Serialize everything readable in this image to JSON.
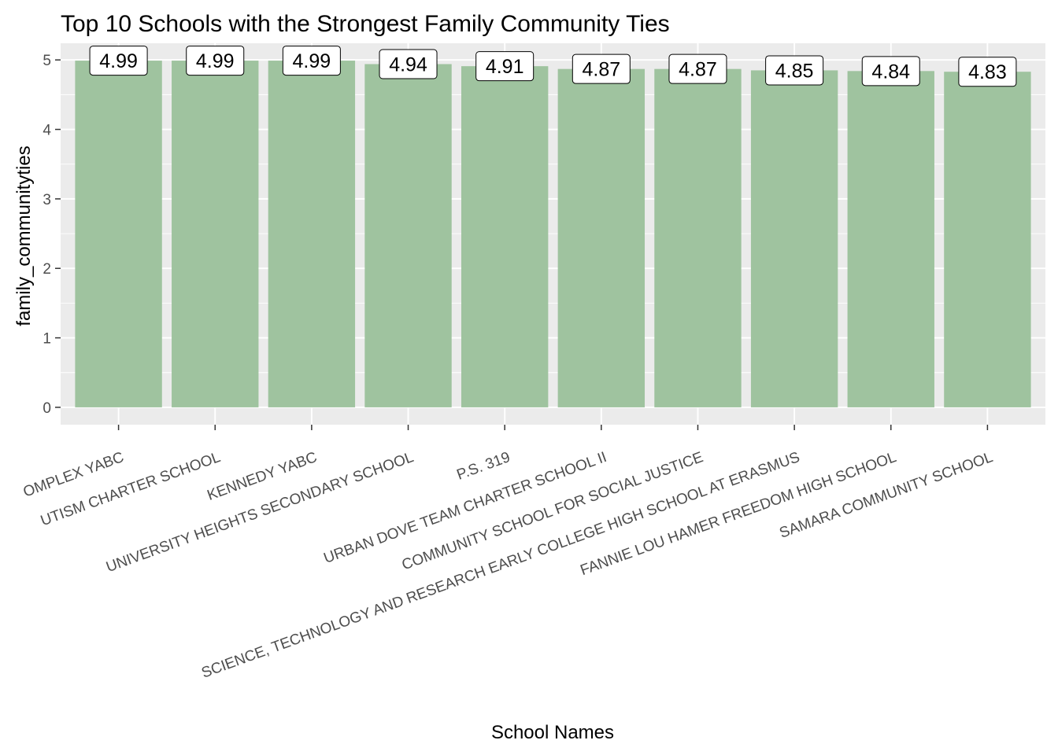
{
  "chart_data": {
    "type": "bar",
    "title": "Top 10 Schools with the Strongest Family Community Ties",
    "xlabel": "School Names",
    "ylabel": "family_communityties",
    "categories": [
      "OMPLEX YABC",
      "UTISM CHARTER SCHOOL",
      "KENNEDY YABC",
      "UNIVERSITY HEIGHTS SECONDARY SCHOOL",
      "P.S. 319",
      "URBAN DOVE TEAM CHARTER SCHOOL II",
      "COMMUNITY SCHOOL FOR SOCIAL JUSTICE",
      "SCIENCE, TECHNOLOGY AND RESEARCH EARLY COLLEGE HIGH SCHOOL AT ERASMUS",
      "FANNIE LOU HAMER FREEDOM HIGH SCHOOL",
      "SAMARA COMMUNITY SCHOOL"
    ],
    "values": [
      4.99,
      4.99,
      4.99,
      4.94,
      4.91,
      4.87,
      4.87,
      4.85,
      4.84,
      4.83
    ],
    "data_labels": [
      "4.99",
      "4.99",
      "4.99",
      "4.94",
      "4.91",
      "4.87",
      "4.87",
      "4.85",
      "4.84",
      "4.83"
    ],
    "yticks": [
      0,
      1,
      2,
      3,
      4,
      5
    ],
    "ylim": [
      -0.25,
      5.24
    ],
    "grid": true,
    "legend": "none",
    "colors": {
      "bar": "#9fc39f",
      "panel": "#ebebeb",
      "grid_major": "#ffffff",
      "label_box": "#ffffff",
      "label_border": "#000000"
    }
  }
}
